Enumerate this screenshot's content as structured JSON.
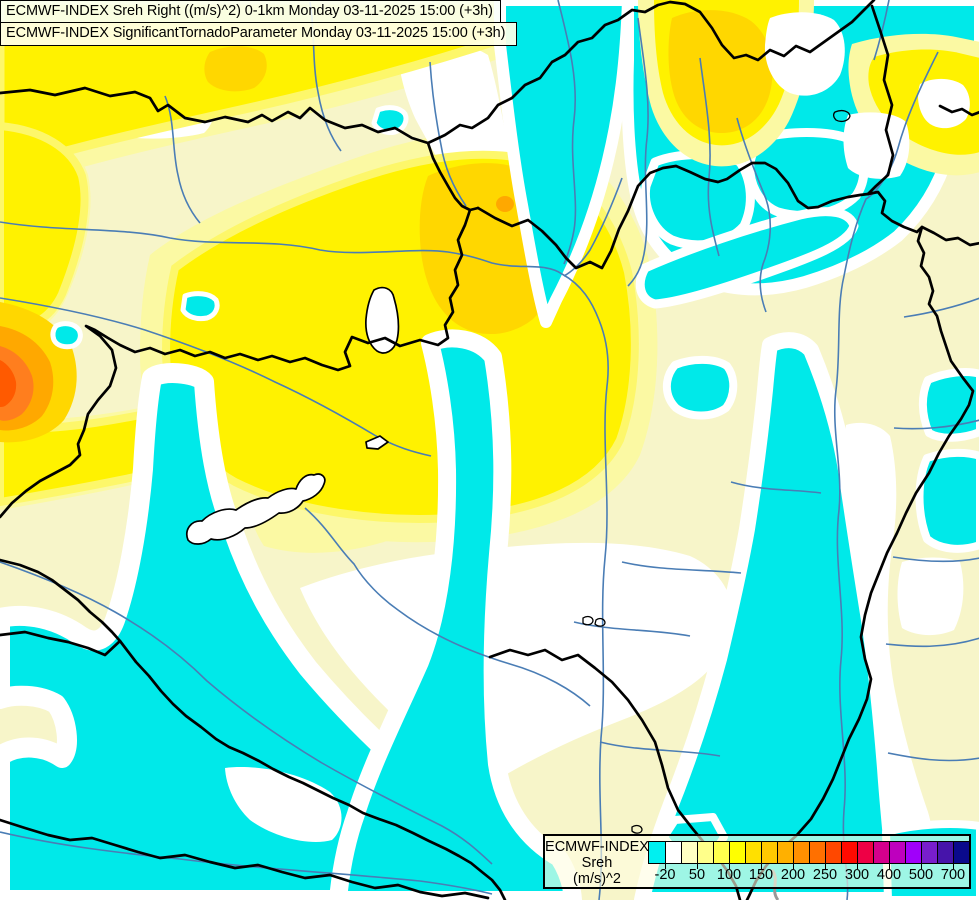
{
  "title_box": {
    "line1": "ECMWF-INDEX Sreh Right ((m/s)^2) 0-1km Monday 03-11-2025 15:00 (+3h)",
    "line2": "ECMWF-INDEX SignificantTornadoParameter Monday 03-11-2025 15:00 (+3h)"
  },
  "legend": {
    "label_lines": [
      "ECMWF-INDEX",
      "Sreh",
      "(m/s)^2"
    ],
    "swatch_colors": [
      "#00F0F0",
      "#FFFFFF",
      "#FFFFC3",
      "#FFFF8A",
      "#FFFF4D",
      "#FFFF00",
      "#FFE000",
      "#FFC800",
      "#FFB000",
      "#FF9000",
      "#FF7000",
      "#FF4800",
      "#FF0A00",
      "#EE0045",
      "#D4008C",
      "#BE00BE",
      "#A000FA",
      "#781ECC",
      "#4614AA",
      "#0A0A8C"
    ],
    "tick_labels": [
      "-20",
      "50",
      "100",
      "150",
      "200",
      "250",
      "300",
      "400",
      "500",
      "700"
    ]
  },
  "map_palette": {
    "cream_base": "#F7F5C9",
    "pale_yellow": "#FBF9A3",
    "bright_yellow": "#FFF200",
    "yellow_fringe": "#FDF76A",
    "gold": "#FFD700",
    "orange": "#FFA800",
    "deep_orange": "#FF7E1E",
    "hot_core": "#FF5A00",
    "cyan": "#00E9E9",
    "white_band": "#FFFFFF",
    "river_blue": "#4A7DB5",
    "border_black": "#000000",
    "gray_line": "#999999"
  }
}
